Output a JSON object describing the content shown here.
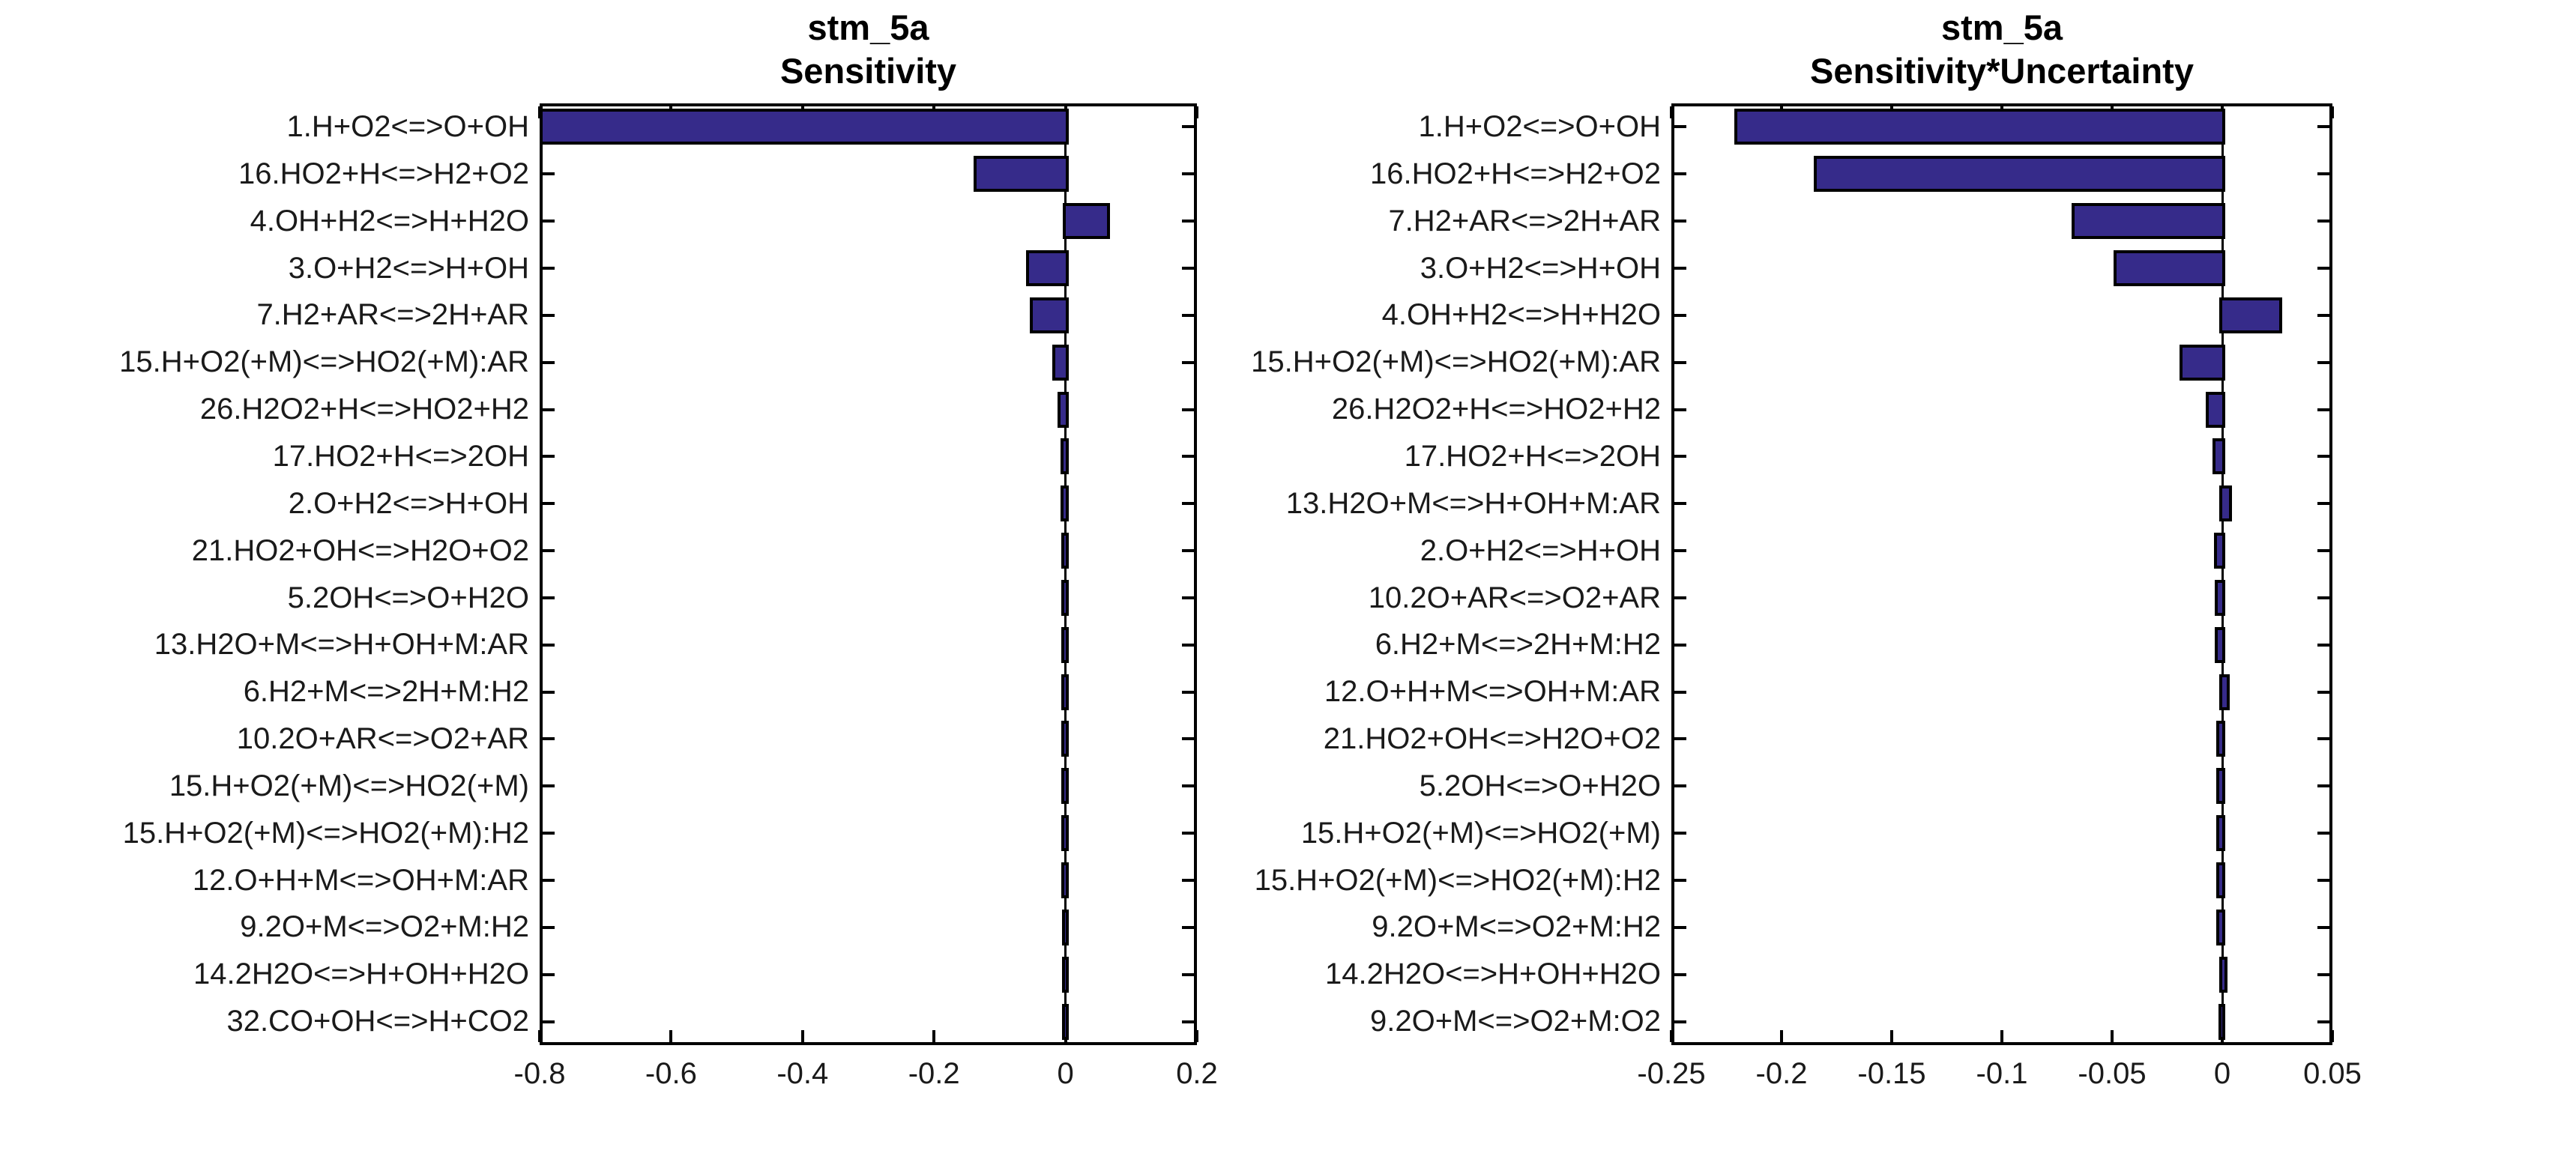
{
  "figure": {
    "background": "#ffffff"
  },
  "colors": {
    "bar_fill": "#362B8A",
    "bar_edge": "#000000",
    "axis": "#000000",
    "text": "#1a1a1a"
  },
  "chart_data": [
    {
      "type": "bar",
      "orientation": "horizontal",
      "title_line1": "stm_5a",
      "title_line2": "Sensitivity",
      "xlim": [
        -0.8,
        0.2
      ],
      "xticks": [
        -0.8,
        -0.6,
        -0.4,
        -0.2,
        0,
        0.2
      ],
      "xtick_labels": [
        "-0.8",
        "-0.6",
        "-0.4",
        "-0.2",
        "0",
        "0.2"
      ],
      "grid": false,
      "zero_line": true,
      "legend": "none",
      "categories": [
        "1.H+O2<=>O+OH",
        "16.HO2+H<=>H2+O2",
        "4.OH+H2<=>H+H2O",
        "3.O+H2<=>H+OH",
        "7.H2+AR<=>2H+AR",
        "15.H+O2(+M)<=>HO2(+M):AR",
        "26.H2O2+H<=>HO2+H2",
        "17.HO2+H<=>2OH",
        "2.O+H2<=>H+OH",
        "21.HO2+OH<=>H2O+O2",
        "5.2OH<=>O+H2O",
        "13.H2O+M<=>H+OH+M:AR",
        "6.H2+M<=>2H+M:H2",
        "10.2O+AR<=>O2+AR",
        "15.H+O2(+M)<=>HO2(+M)",
        "15.H+O2(+M)<=>HO2(+M):H2",
        "12.O+H+M<=>OH+M:AR",
        "9.2O+M<=>O2+M:H2",
        "14.2H2O<=>H+OH+H2O",
        "32.CO+OH<=>H+CO2"
      ],
      "values": [
        -0.795,
        -0.135,
        0.063,
        -0.055,
        -0.05,
        -0.016,
        -0.007,
        -0.003,
        -0.0025,
        -0.002,
        -0.002,
        -0.002,
        -0.002,
        -0.0015,
        -0.0015,
        -0.0015,
        -0.0015,
        -0.001,
        -0.001,
        -0.001
      ]
    },
    {
      "type": "bar",
      "orientation": "horizontal",
      "title_line1": "stm_5a",
      "title_line2": "Sensitivity*Uncertainty",
      "xlim": [
        -0.25,
        0.05
      ],
      "xticks": [
        -0.25,
        -0.2,
        -0.15,
        -0.1,
        -0.05,
        0,
        0.05
      ],
      "xtick_labels": [
        "-0.25",
        "-0.2",
        "-0.15",
        "-0.1",
        "-0.05",
        "0",
        "0.05"
      ],
      "grid": false,
      "zero_line": true,
      "legend": "none",
      "categories": [
        "1.H+O2<=>O+OH",
        "16.HO2+H<=>H2+O2",
        "7.H2+AR<=>2H+AR",
        "3.O+H2<=>H+OH",
        "4.OH+H2<=>H+H2O",
        "15.H+O2(+M)<=>HO2(+M):AR",
        "26.H2O2+H<=>HO2+H2",
        "17.HO2+H<=>2OH",
        "13.H2O+M<=>H+OH+M:AR",
        "2.O+H2<=>H+OH",
        "10.2O+AR<=>O2+AR",
        "6.H2+M<=>2H+M:H2",
        "12.O+H+M<=>OH+M:AR",
        "21.HO2+OH<=>H2O+O2",
        "5.2OH<=>O+H2O",
        "15.H+O2(+M)<=>HO2(+M)",
        "15.H+O2(+M)<=>HO2(+M):H2",
        "9.2O+M<=>O2+M:H2",
        "14.2H2O<=>H+OH+H2O",
        "9.2O+M<=>O2+M:O2"
      ],
      "values": [
        -0.22,
        -0.184,
        -0.067,
        -0.048,
        0.026,
        -0.018,
        -0.006,
        -0.003,
        0.003,
        -0.0025,
        -0.002,
        -0.002,
        0.002,
        -0.0015,
        -0.0015,
        -0.0015,
        -0.0015,
        -0.0015,
        0.001,
        -0.0005
      ]
    }
  ]
}
